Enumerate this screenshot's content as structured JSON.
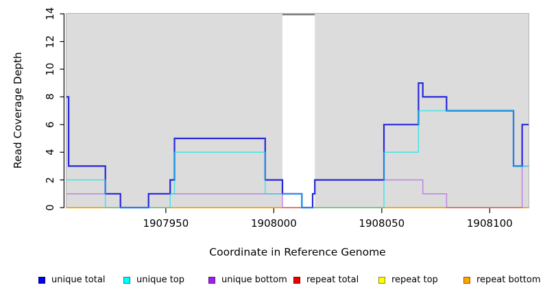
{
  "figure": {
    "y_axis_title": "Read Coverage Depth",
    "x_axis_title": "Coordinate in Reference Genome"
  },
  "legend": {
    "items": [
      {
        "label": "unique total",
        "color": "#0101f1"
      },
      {
        "label": "unique top",
        "color": "#00ffff"
      },
      {
        "label": "unique bottom",
        "color": "#a020f0"
      },
      {
        "label": "repeat total",
        "color": "#ee0000"
      },
      {
        "label": "repeat top",
        "color": "#ffff00"
      },
      {
        "label": "repeat bottom",
        "color": "#ffa500"
      }
    ]
  },
  "chart_data": {
    "type": "line",
    "subtype": "step-coverage",
    "title": "",
    "xlabel": "Coordinate in Reference Genome",
    "ylabel": "Read Coverage Depth",
    "x_domain": [
      1907904,
      1908118
    ],
    "ylim": [
      0,
      14
    ],
    "x_ticks": [
      1907950,
      1908000,
      1908050,
      1908100
    ],
    "y_ticks": [
      0,
      2,
      4,
      6,
      8,
      10,
      12,
      14
    ],
    "grid": false,
    "legend_position": "bottom",
    "plot_bg": "#dcdcdc",
    "plot_border": "#b5b5b5",
    "masked_region": {
      "x_start": 1908004,
      "x_end": 1908019,
      "fill": "#ffffff",
      "top_border": "#6a6a6a"
    },
    "series": [
      {
        "name": "repeat total",
        "color": "#ff0000",
        "opacity": 1,
        "width": 1.2,
        "steps": [
          [
            1907904,
            0
          ],
          [
            1908118,
            0
          ]
        ]
      },
      {
        "name": "repeat top",
        "color": "#ffff00",
        "opacity": 1,
        "width": 1.2,
        "steps": [
          [
            1907904,
            0
          ],
          [
            1908118,
            0
          ]
        ]
      },
      {
        "name": "repeat bottom",
        "color": "#ffa500",
        "opacity": 1,
        "width": 1.6,
        "steps": [
          [
            1907904,
            0
          ],
          [
            1908118,
            0
          ]
        ]
      },
      {
        "name": "unique bottom",
        "color": "#a020f0",
        "opacity": 0.45,
        "width": 1.6,
        "steps": [
          [
            1907904,
            1
          ],
          [
            1907929,
            0
          ],
          [
            1907942,
            1
          ],
          [
            1908004,
            0
          ],
          [
            1908018,
            1
          ],
          [
            1908019,
            2
          ],
          [
            1908069,
            1
          ],
          [
            1908080,
            0
          ],
          [
            1908115,
            3
          ],
          [
            1908118,
            3
          ]
        ]
      },
      {
        "name": "unique total",
        "color": "#2525dc",
        "opacity": 1,
        "width": 2.2,
        "steps": [
          [
            1907904,
            8
          ],
          [
            1907905,
            3
          ],
          [
            1907922,
            1
          ],
          [
            1907929,
            0
          ],
          [
            1907942,
            1
          ],
          [
            1907952,
            2
          ],
          [
            1907954,
            5
          ],
          [
            1907996,
            2
          ],
          [
            1908004,
            1
          ],
          [
            1908013,
            0
          ],
          [
            1908018,
            1
          ],
          [
            1908019,
            2
          ],
          [
            1908051,
            6
          ],
          [
            1908067,
            9
          ],
          [
            1908069,
            8
          ],
          [
            1908080,
            7
          ],
          [
            1908111,
            3
          ],
          [
            1908115,
            6
          ],
          [
            1908118,
            6
          ]
        ]
      },
      {
        "name": "unique top",
        "color": "#00e6e6",
        "opacity": 0.65,
        "width": 1.6,
        "steps": [
          [
            1907904,
            2
          ],
          [
            1907922,
            0
          ],
          [
            1907952,
            1
          ],
          [
            1907954,
            4
          ],
          [
            1907996,
            1
          ],
          [
            1908013,
            0
          ],
          [
            1908051,
            4
          ],
          [
            1908067,
            7
          ],
          [
            1908111,
            3
          ],
          [
            1908118,
            3
          ]
        ]
      }
    ]
  }
}
